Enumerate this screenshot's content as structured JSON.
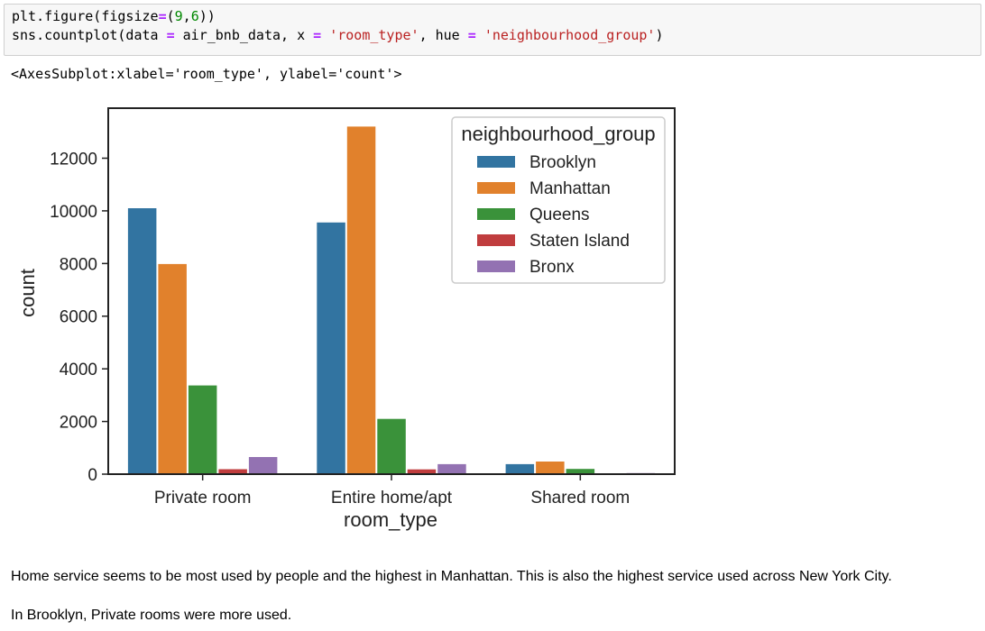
{
  "code": {
    "line1": {
      "fn": "plt.figure(figsize",
      "eq": "=",
      "open": "(",
      "n1": "9",
      "comma": ",",
      "n2": "6",
      "close": "))"
    },
    "line2": {
      "fn": "sns.countplot(data ",
      "eq1": "=",
      "data_var": " air_bnb_data, x ",
      "eq2": "=",
      "x_val": "'room_type'",
      "mid": ", hue ",
      "eq3": "=",
      "hue_val": "'neighbourhood_group'",
      "end": ")"
    }
  },
  "output_repr": "<AxesSubplot:xlabel='room_type', ylabel='count'>",
  "chart_data": {
    "type": "bar",
    "categories": [
      "Private room",
      "Entire home/apt",
      "Shared room"
    ],
    "series": [
      {
        "name": "Brooklyn",
        "values": [
          10100,
          9560,
          380
        ],
        "color": "#3274a1"
      },
      {
        "name": "Manhattan",
        "values": [
          7980,
          13200,
          480
        ],
        "color": "#e1812c"
      },
      {
        "name": "Queens",
        "values": [
          3370,
          2100,
          200
        ],
        "color": "#3a923a"
      },
      {
        "name": "Staten Island",
        "values": [
          190,
          180,
          10
        ],
        "color": "#c03d3e"
      },
      {
        "name": "Bronx",
        "values": [
          650,
          380,
          40
        ],
        "color": "#9372b2"
      }
    ],
    "xlabel": "room_type",
    "ylabel": "count",
    "ylim": [
      0,
      13900
    ],
    "yticks": [
      0,
      2000,
      4000,
      6000,
      8000,
      10000,
      12000
    ],
    "legend": {
      "title": "neighbourhood_group",
      "placement": "upper-right"
    },
    "grid": false
  },
  "notes": [
    "Home service seems to be most used by people and the highest in Manhattan. This is also the highest service used across New York City.",
    "In Brooklyn, Private rooms were more used."
  ]
}
